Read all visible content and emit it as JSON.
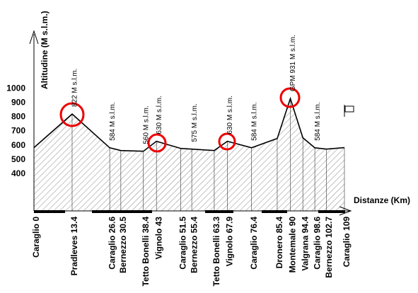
{
  "chart_data": {
    "type": "area",
    "y_label": "Altitudine (M s.l.m.)",
    "x_label": "Distanze (Km)",
    "x": [
      0,
      13.4,
      26.6,
      30.5,
      38.4,
      43,
      51.5,
      55.4,
      63.3,
      67.9,
      76.4,
      85.4,
      90,
      94.4,
      98.6,
      102.7,
      109
    ],
    "categories": [
      "Caraglio 0",
      "Pradleves 13.4",
      "Caraglio 26.6",
      "Bernezzo 30.5",
      "Tetto Bonelli 38.4",
      "Vignolo 43",
      "Caraglio 51.5",
      "Bernezzo 55.4",
      "Tetto Bonelli 63.3",
      "Vignolo 67.9",
      "Caraglio 76.4",
      "Dronero 85.4",
      "Montemale 90",
      "Valgrana 94.4",
      "Caraglio 98.6",
      "Bernezzo 102.7",
      "Caraglio 109"
    ],
    "values": [
      585,
      822,
      584,
      565,
      560,
      630,
      580,
      575,
      565,
      630,
      584,
      650,
      931,
      655,
      584,
      575,
      585
    ],
    "annotations": [
      {
        "x": 13.4,
        "text": "822 M s.l.m."
      },
      {
        "x": 26.6,
        "text": "584 M s.l.m."
      },
      {
        "x": 38.4,
        "text": "560 M s.l.m."
      },
      {
        "x": 43,
        "text": "630 M s.l.m."
      },
      {
        "x": 55.4,
        "text": "575 M s.l.m."
      },
      {
        "x": 67.9,
        "text": "630 M s.l.m."
      },
      {
        "x": 76.4,
        "text": "584 M s.l.m."
      },
      {
        "x": 90,
        "text": "GPM 931 M s.l.m."
      },
      {
        "x": 98.6,
        "text": "584 M s.l.m."
      }
    ],
    "color": "#000000",
    "xlim": [
      0,
      109
    ],
    "ylim": [
      140,
      1400
    ],
    "yticks": [
      400,
      500,
      600,
      700,
      800,
      900,
      1000
    ]
  }
}
